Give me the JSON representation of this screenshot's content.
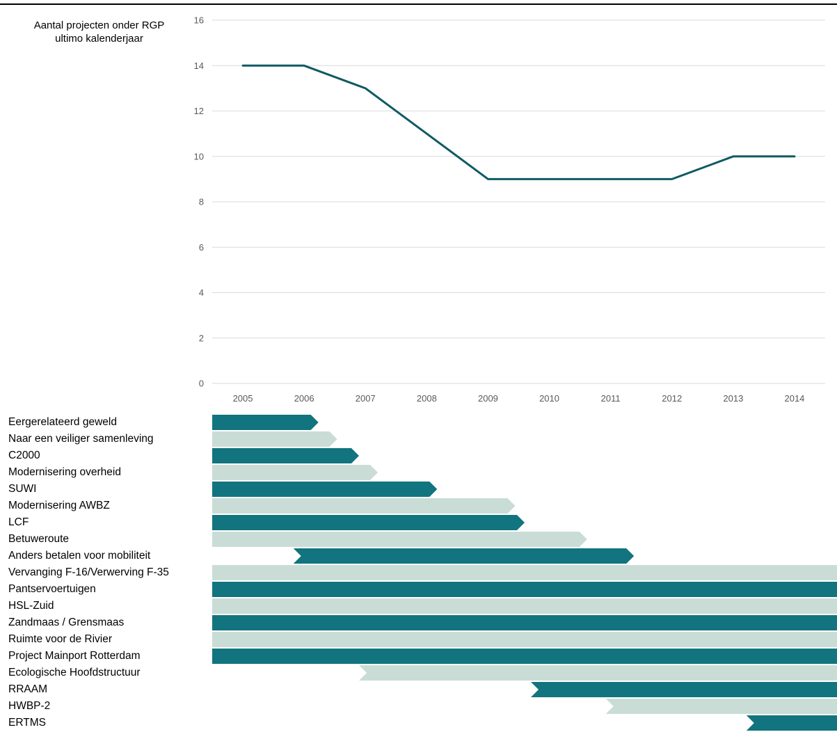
{
  "chart_data": [
    {
      "type": "line",
      "ylabel_lines": [
        "Aantal projecten onder RGP",
        "ultimo kalenderjaar"
      ],
      "x": [
        "2005",
        "2006",
        "2007",
        "2008",
        "2009",
        "2010",
        "2011",
        "2012",
        "2013",
        "2014"
      ],
      "series": [
        {
          "values": [
            14,
            14,
            13,
            11,
            9,
            9,
            9,
            9,
            10,
            10
          ]
        }
      ],
      "ylim": [
        0,
        16
      ],
      "yticks": [
        0,
        2,
        4,
        6,
        8,
        10,
        12,
        14,
        16
      ],
      "grid": true,
      "line_color": "#0f5a63",
      "grid_color": "#d9d9d9"
    },
    {
      "type": "gantt",
      "x_domain": [
        2005,
        2015
      ],
      "colors": {
        "dark": "#11747e",
        "light": "#c9ddd6"
      },
      "items": [
        {
          "label": "Eergerelateerd geweld",
          "start": 2005,
          "end": 2006.7,
          "shade": "dark"
        },
        {
          "label": "Naar een veiliger samenleving",
          "start": 2005,
          "end": 2007.0,
          "shade": "light"
        },
        {
          "label": "C2000",
          "start": 2005,
          "end": 2007.35,
          "shade": "dark"
        },
        {
          "label": "Modernisering overheid",
          "start": 2005,
          "end": 2007.65,
          "shade": "light"
        },
        {
          "label": "SUWI",
          "start": 2005,
          "end": 2008.6,
          "shade": "dark"
        },
        {
          "label": "Modernisering AWBZ",
          "start": 2005,
          "end": 2009.85,
          "shade": "light"
        },
        {
          "label": "LCF",
          "start": 2005,
          "end": 2010.0,
          "shade": "dark"
        },
        {
          "label": "Betuweroute",
          "start": 2005,
          "end": 2011.0,
          "shade": "light"
        },
        {
          "label": "Anders betalen voor mobiliteit",
          "start": 2006.3,
          "end": 2011.75,
          "shade": "dark"
        },
        {
          "label": "Vervanging F-16/Verwerving F-35",
          "start": 2005,
          "end": 2015,
          "shade": "light"
        },
        {
          "label": "Pantservoertuigen",
          "start": 2005,
          "end": 2015,
          "shade": "dark"
        },
        {
          "label": "HSL-Zuid",
          "start": 2005,
          "end": 2015,
          "shade": "light"
        },
        {
          "label": "Zandmaas / Grensmaas",
          "start": 2005,
          "end": 2015,
          "shade": "dark"
        },
        {
          "label": "Ruimte voor de Rivier",
          "start": 2005,
          "end": 2015,
          "shade": "light"
        },
        {
          "label": "Project Mainport Rotterdam",
          "start": 2005,
          "end": 2015,
          "shade": "dark"
        },
        {
          "label": "Ecologische Hoofdstructuur",
          "start": 2007.35,
          "end": 2015,
          "shade": "light"
        },
        {
          "label": "RRAAM",
          "start": 2010.1,
          "end": 2015,
          "shade": "dark"
        },
        {
          "label": "HWBP-2",
          "start": 2011.3,
          "end": 2015,
          "shade": "light"
        },
        {
          "label": "ERTMS",
          "start": 2013.55,
          "end": 2015,
          "shade": "dark"
        }
      ]
    }
  ]
}
